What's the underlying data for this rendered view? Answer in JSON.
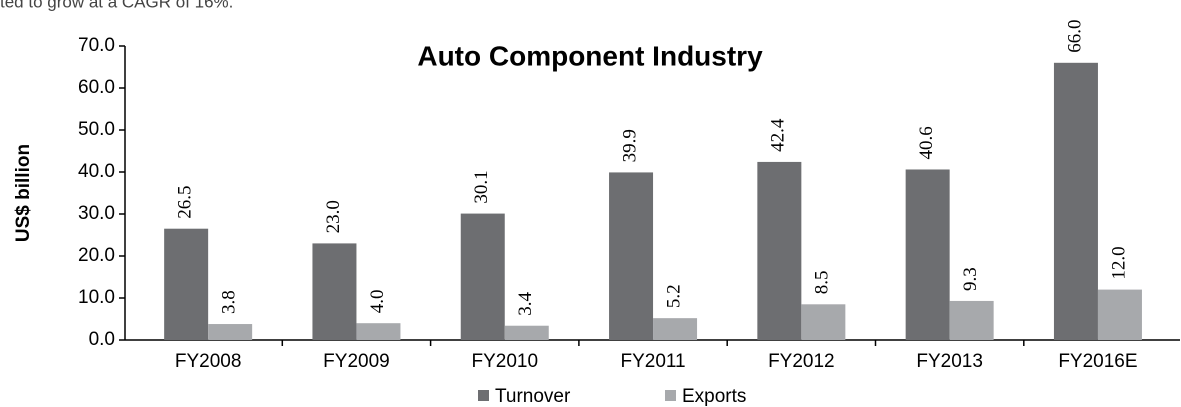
{
  "caption": "ted to grow at a CAGR of 16%.",
  "chart_data": {
    "type": "bar",
    "title": "Auto Component Industry",
    "y_label": "US$ billion",
    "categories": [
      "FY2008",
      "FY2009",
      "FY2010",
      "FY2011",
      "FY2012",
      "FY2013",
      "FY2016E"
    ],
    "series": [
      {
        "name": "Turnover",
        "color": "#6d6e71",
        "values": [
          26.5,
          23,
          30.1,
          39.9,
          42.4,
          40.6,
          66
        ],
        "value_labels": [
          "26.5",
          "23.0",
          "30.1",
          "39.9",
          "42.4",
          "40.6",
          "66.0"
        ]
      },
      {
        "name": "Exports",
        "color": "#a7a9ac",
        "values": [
          3.8,
          4,
          3.4,
          5.2,
          8.5,
          9.3,
          12
        ],
        "value_labels": [
          "3.8",
          "4.0",
          "3.4",
          "5.2",
          "8.5",
          "9.3",
          "12.0"
        ]
      }
    ],
    "ylim": [
      0,
      70
    ],
    "yticks": [
      {
        "value": 0,
        "label": "0.0"
      },
      {
        "value": 10,
        "label": "10.0"
      },
      {
        "value": 20,
        "label": "20.0"
      },
      {
        "value": 30,
        "label": "30.0"
      },
      {
        "value": 40,
        "label": "40.0"
      },
      {
        "value": 50,
        "label": "50.0"
      },
      {
        "value": 60,
        "label": "60.0"
      },
      {
        "value": 70,
        "label": "70.0"
      }
    ],
    "grid": false,
    "legend": "bottom"
  }
}
